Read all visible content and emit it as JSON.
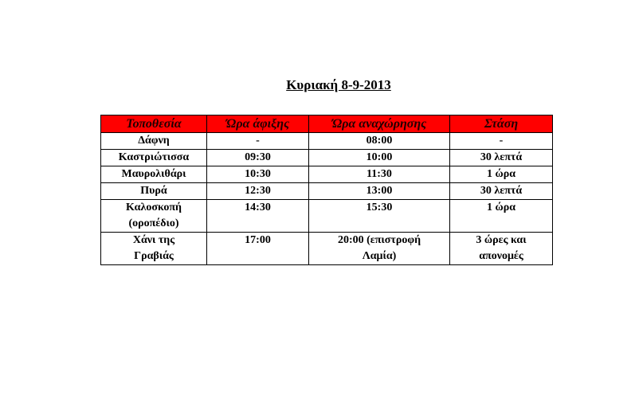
{
  "title": "Κυριακή 8-9-2013",
  "table": {
    "header_color": "#ff0000",
    "headers": [
      "Τοποθεσία",
      "Ώρα άφιξης",
      "Ώρα αναχώρησης",
      "Στάση"
    ],
    "rows": [
      [
        "Δάφνη",
        "-",
        "08:00",
        "-"
      ],
      [
        "Καστριώτισσα",
        "09:30",
        "10:00",
        "30 λεπτά"
      ],
      [
        "Μαυρολιθάρι",
        "10:30",
        "11:30",
        "1 ώρα"
      ],
      [
        "Πυρά",
        "12:30",
        "13:00",
        "30 λεπτά"
      ],
      [
        "Καλοσκοπή (οροπέδιο)",
        "14:30",
        "15:30",
        "1 ώρα"
      ],
      [
        "Χάνι της Γραβιάς",
        "17:00",
        "20:00 (επιστροφή Λαμία)",
        "3 ώρες και απονομές"
      ]
    ]
  }
}
